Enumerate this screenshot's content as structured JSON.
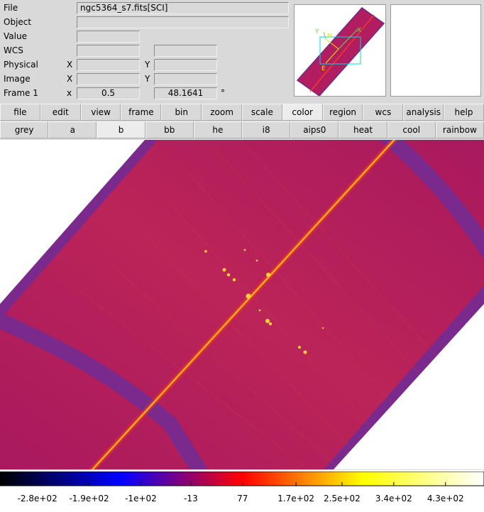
{
  "info": {
    "labels": {
      "file": "File",
      "object": "Object",
      "value": "Value",
      "wcs": "WCS",
      "physical": "Physical",
      "image": "Image",
      "frame": "Frame 1"
    },
    "axis": {
      "x": "X",
      "y": "Y",
      "zoom_x": "x"
    },
    "file_value": "ngc5364_s7.fits[SCI]",
    "object_value": "",
    "value_value": "",
    "frame_zoom": "0.5",
    "frame_angle": "48.1641",
    "degree_symbol": "°"
  },
  "panner": {
    "compass": {
      "north": "N",
      "east": "E",
      "x": "X",
      "y": "Y"
    }
  },
  "menu": [
    "file",
    "edit",
    "view",
    "frame",
    "bin",
    "zoom",
    "scale",
    "color",
    "region",
    "wcs",
    "analysis",
    "help"
  ],
  "menu_active": "color",
  "colormaps": [
    "grey",
    "a",
    "b",
    "bb",
    "he",
    "i8",
    "aips0",
    "heat",
    "cool",
    "rainbow"
  ],
  "colormap_active": "b",
  "colorbar": {
    "ticks": [
      {
        "label": "-2.8e+02",
        "value": -280
      },
      {
        "label": "-1.9e+02",
        "value": -190
      },
      {
        "label": "-1e+02",
        "value": -100
      },
      {
        "label": "-13",
        "value": -13
      },
      {
        "label": "77",
        "value": 77
      },
      {
        "label": "1.7e+02",
        "value": 170
      },
      {
        "label": "2.5e+02",
        "value": 250
      },
      {
        "label": "3.4e+02",
        "value": 340
      },
      {
        "label": "4.3e+02",
        "value": 430
      }
    ],
    "range": [
      -345,
      497
    ]
  },
  "colors": {
    "background": "#d9d9d9",
    "image_bg": "#b11d5f",
    "edge_band": "#7a2a8c",
    "cyan_box": "#00d8e8",
    "compass": "#e8e800",
    "compass_green": "#6cd84a"
  }
}
